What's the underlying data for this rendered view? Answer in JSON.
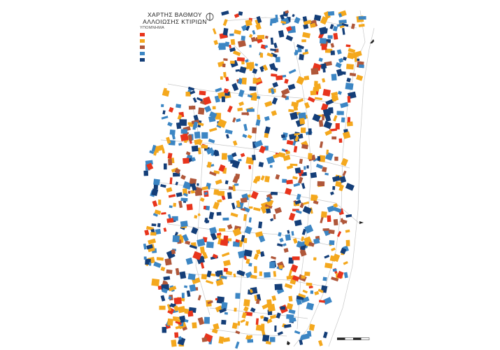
{
  "title": {
    "line1": "ΧΑΡΤΗΣ ΒΑΘΜΟΥ",
    "line2": "ΑΛΛΟΙΩΣΗΣ ΚΤΙΡΙΩΝ"
  },
  "legend": {
    "heading": "ΥΠΟΜΝΗΜΑ",
    "items": [
      {
        "color": "#e8341c",
        "label": ""
      },
      {
        "color": "#f4a81d",
        "label": ""
      },
      {
        "color": "#b0573a",
        "label": ""
      },
      {
        "color": "#3c86c4",
        "label": ""
      },
      {
        "color": "#143e78",
        "label": ""
      }
    ]
  },
  "roads": {
    "north": "",
    "east": "",
    "south": "",
    "center": "",
    "southeast": ""
  },
  "scale": {
    "label": ""
  },
  "colors": {
    "red": "#e8341c",
    "orange": "#f4a81d",
    "brown": "#b0573a",
    "lightblue": "#3c86c4",
    "darkblue": "#143e78",
    "street_outline": "#c8c8c8",
    "arrow": "#222222"
  },
  "icons": {
    "north_arrow": "north-arrow-icon",
    "direction": "direction-arrow-icon"
  }
}
